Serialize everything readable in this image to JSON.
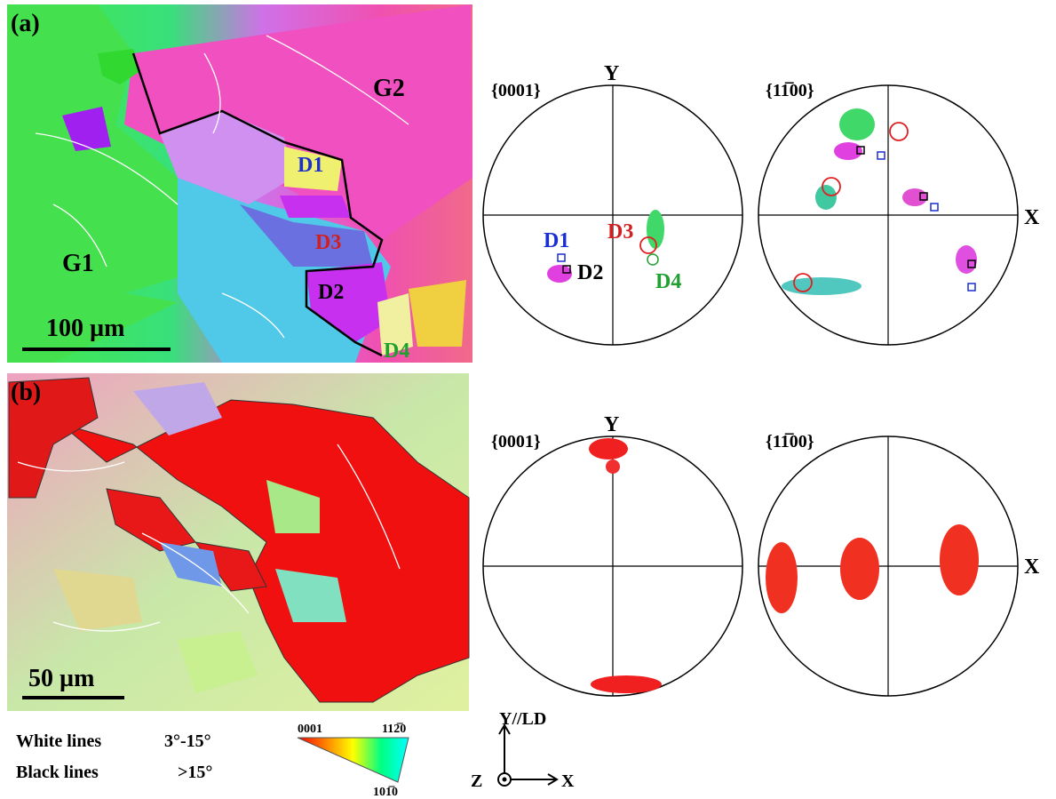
{
  "panel_a": {
    "label": "(a)",
    "map": {
      "grains": [
        "G2",
        "G1"
      ],
      "twins": [
        "D1",
        "D3",
        "D2",
        "D4"
      ],
      "scale_bar": "100 µm"
    },
    "pole_figures": [
      {
        "title": "{0001}",
        "axis_y": "Y",
        "twins": [
          "D1",
          "D3",
          "D2",
          "D4"
        ]
      },
      {
        "title": "{11̅00}",
        "axis_x": "X"
      }
    ]
  },
  "panel_b": {
    "label": "(b)",
    "map": {
      "scale_bar": "50 µm"
    },
    "pole_figures": [
      {
        "title": "{0001}",
        "axis_y": "Y"
      },
      {
        "title": "{11̅00}",
        "axis_x": "X"
      }
    ]
  },
  "boundary_legend": [
    {
      "name": "White lines",
      "range": "3°-15°"
    },
    {
      "name": "Black lines",
      "range": ">15°"
    }
  ],
  "ipf_key": {
    "top_left": "0001",
    "top_right": "112̅0",
    "bottom": "101̅0"
  },
  "reference_axes": {
    "y": "Y//LD",
    "z": "Z",
    "x": "X"
  }
}
